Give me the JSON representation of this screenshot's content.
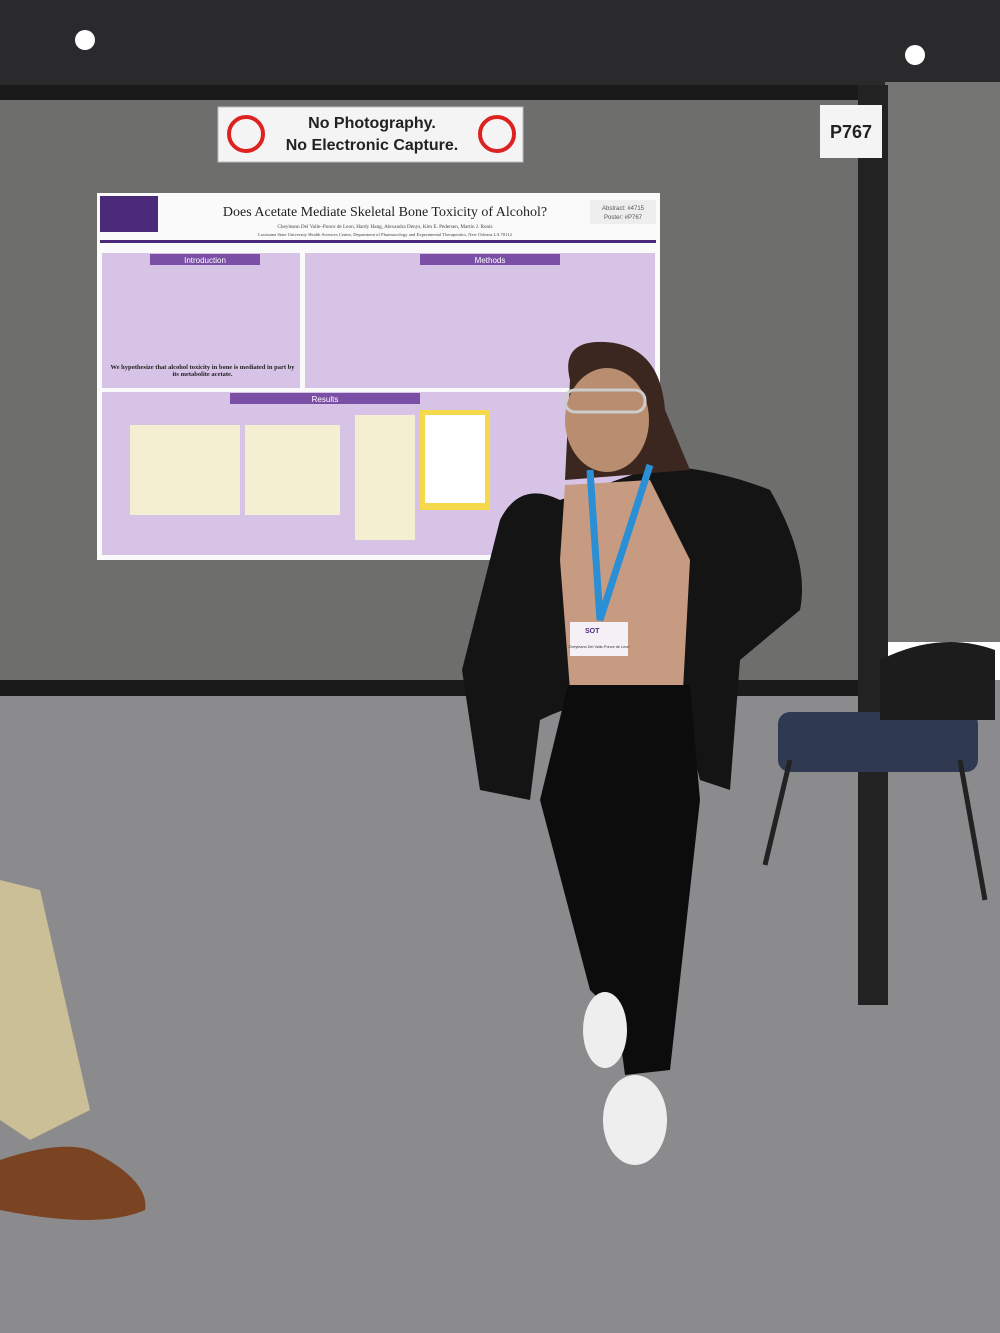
{
  "sign": {
    "line1": "No Photography.",
    "line2": "No Electronic Capture."
  },
  "booth_number": "P767",
  "poster": {
    "title": "Does Acetate Mediate Skeletal Bone Toxicity of Alcohol?",
    "authors": "Cheyleann Del Valle–Ponce de Leon, Hardy Hang, Alexandra Denys, Kim E. Pedersen, Martin J. Ronis",
    "affiliation": "Louisiana State University Health Sciences Center, Department of Pharmacology and Experimental Therapeutics, New Orleans LA 70112",
    "abstract": "Abstract: #4715",
    "poster_number": "Poster: #P767",
    "sections": [
      "Introduction",
      "Methods",
      "Results"
    ],
    "hypothesis": "We hypothesize that alcohol toxicity in bone is mediated in part by its metabolite acetate."
  },
  "badge": {
    "org": "SOT",
    "name": "Cheyleann Del Valle-Ponce de Leon"
  }
}
